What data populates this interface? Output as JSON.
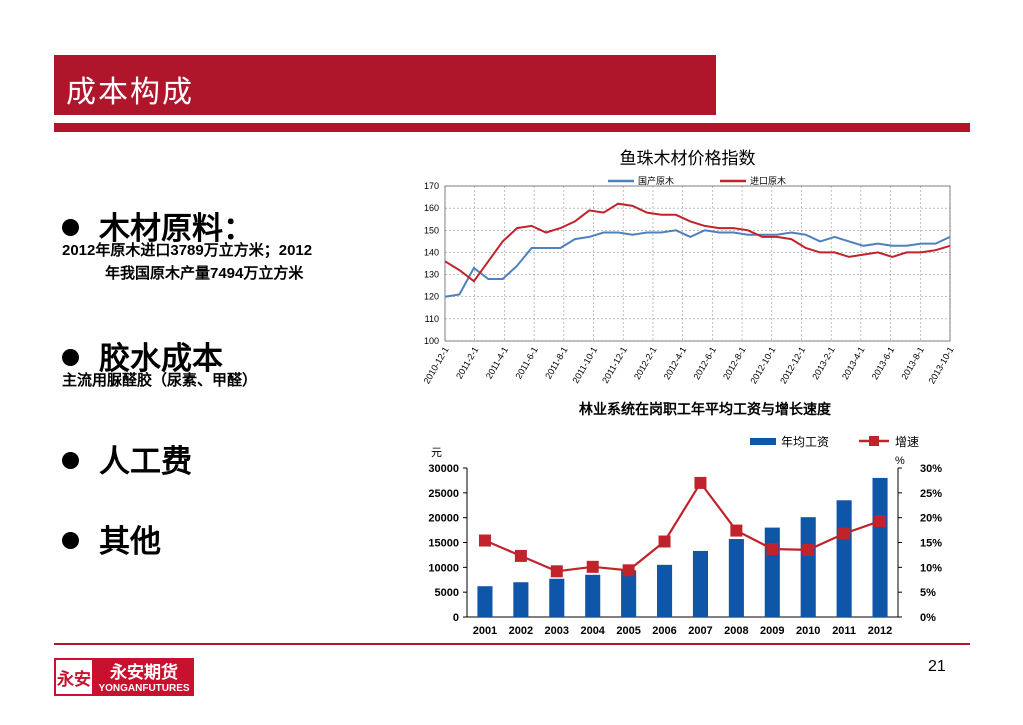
{
  "slide": {
    "title": "成本构成",
    "page_number": "21"
  },
  "bullets": [
    {
      "heading": "木材原料：",
      "lines": [
        "2012年原木进口3789万立方米；2012",
        "年我国原木产量7494万立方米"
      ]
    },
    {
      "heading": "胶水成本",
      "lines": [
        "主流用脲醛胶（尿素、甲醛）"
      ]
    },
    {
      "heading": "人工费",
      "lines": []
    },
    {
      "heading": "其他",
      "lines": []
    }
  ],
  "logo": {
    "mark": "永安",
    "cn": "永安期货",
    "en": "YONGANFUTURES"
  },
  "chart_data": [
    {
      "type": "line",
      "title": "鱼珠木材价格指数",
      "legend_position": "top",
      "grid": true,
      "ylim": [
        100,
        170
      ],
      "yticks": [
        "100",
        "110",
        "120",
        "130",
        "140",
        "150",
        "160",
        "170"
      ],
      "x_tick_labels": [
        "2010-12-1",
        "2011-2-1",
        "2011-4-1",
        "2011-6-1",
        "2011-8-1",
        "2011-10-1",
        "2011-12-1",
        "2012-2-1",
        "2012-4-1",
        "2012-6-1",
        "2012-8-1",
        "2012-10-1",
        "2012-12-1",
        "2013-2-1",
        "2013-4-1",
        "2013-6-1",
        "2013-8-1",
        "2013-10-1"
      ],
      "x": [
        "2010-12-1",
        "2011-1-1",
        "2011-2-1",
        "2011-3-1",
        "2011-4-1",
        "2011-5-1",
        "2011-6-1",
        "2011-7-1",
        "2011-8-1",
        "2011-9-1",
        "2011-10-1",
        "2011-11-1",
        "2011-12-1",
        "2012-1-1",
        "2012-2-1",
        "2012-3-1",
        "2012-4-1",
        "2012-5-1",
        "2012-6-1",
        "2012-7-1",
        "2012-8-1",
        "2012-9-1",
        "2012-10-1",
        "2012-11-1",
        "2012-12-1",
        "2013-1-1",
        "2013-2-1",
        "2013-3-1",
        "2013-4-1",
        "2013-5-1",
        "2013-6-1",
        "2013-7-1",
        "2013-8-1",
        "2013-9-1",
        "2013-10-1",
        "2013-11-1"
      ],
      "series": [
        {
          "name": "国产原木",
          "color": "#4f81bd",
          "values": [
            120,
            121,
            133,
            128,
            128,
            134,
            142,
            142,
            142,
            146,
            147,
            149,
            149,
            148,
            149,
            149,
            150,
            147,
            150,
            149,
            149,
            148,
            148,
            148,
            149,
            148,
            145,
            147,
            145,
            143,
            144,
            143,
            143,
            144,
            144,
            147
          ]
        },
        {
          "name": "进口原木",
          "color": "#c0232c",
          "values": [
            136,
            132,
            127,
            136,
            145,
            151,
            152,
            149,
            151,
            154,
            159,
            158,
            162,
            161,
            158,
            157,
            157,
            154,
            152,
            151,
            151,
            150,
            147,
            147,
            146,
            142,
            140,
            140,
            138,
            139,
            140,
            138,
            140,
            140,
            141,
            143
          ]
        }
      ]
    },
    {
      "type": "bar",
      "title": "林业系统在岗职工年平均工资与增长速度",
      "legend_position": "top-right",
      "grid": false,
      "categories": [
        "2001",
        "2002",
        "2003",
        "2004",
        "2005",
        "2006",
        "2007",
        "2008",
        "2009",
        "2010",
        "2011",
        "2012"
      ],
      "y_unit_left": "元",
      "y_unit_right": "%",
      "ylim": [
        0,
        30000
      ],
      "yticks": [
        "0",
        "5000",
        "10000",
        "15000",
        "20000",
        "25000",
        "30000"
      ],
      "y2lim": [
        0,
        30
      ],
      "y2ticks": [
        "0%",
        "5%",
        "10%",
        "15%",
        "20%",
        "25%",
        "30%"
      ],
      "series": [
        {
          "name": "年均工资",
          "kind": "bar",
          "color": "#0f55a8",
          "values": [
            6200,
            7000,
            7700,
            8500,
            9400,
            10500,
            13300,
            15700,
            18000,
            20100,
            23500,
            28000
          ]
        },
        {
          "name": "增速",
          "kind": "line",
          "color": "#c0232c",
          "values": [
            15.4,
            12.3,
            9.2,
            10.1,
            9.4,
            15.2,
            27.0,
            17.4,
            13.7,
            13.5,
            16.8,
            19.3
          ]
        }
      ]
    }
  ]
}
